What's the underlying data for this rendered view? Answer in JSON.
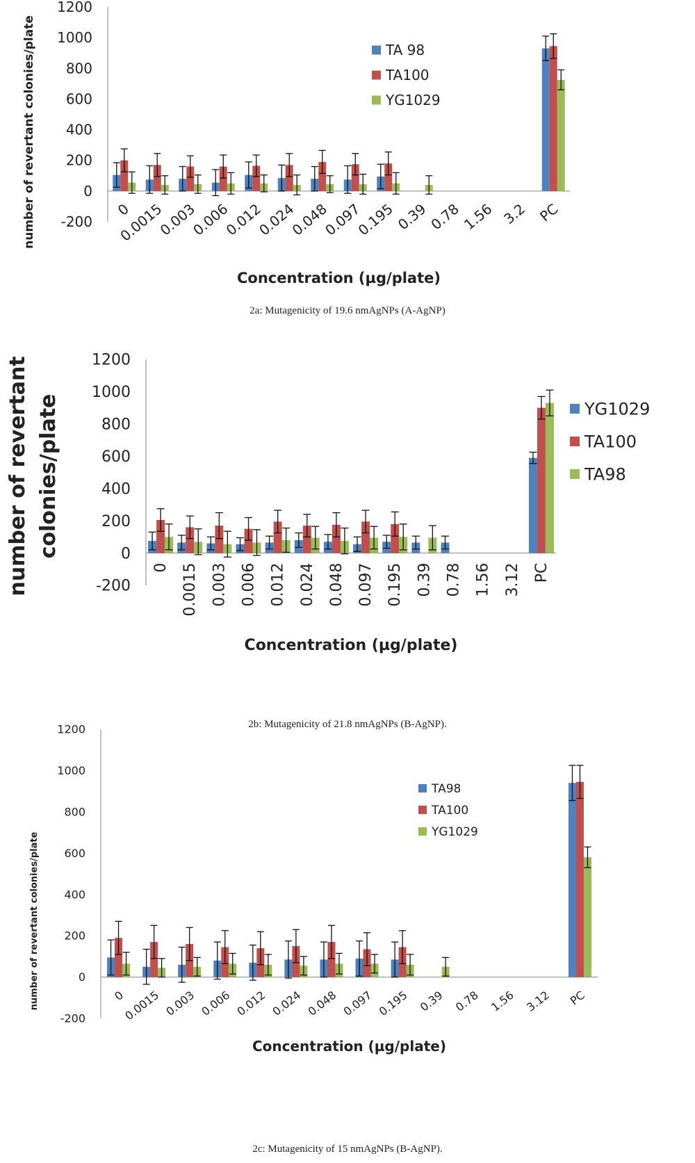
{
  "colors": {
    "blue": "#4F81BD",
    "red": "#C0504D",
    "green": "#9BBB59"
  },
  "chart_data": [
    {
      "type": "bar",
      "ylabel": "number of revertant colonies/plate",
      "xlabel": "Concentration (µg/plate)",
      "caption": "2a: Mutagenicity of 19.6 nmAgNPs (A-AgNP)",
      "categories": [
        "0",
        "0.0015",
        "0.003",
        "0.006",
        "0.012",
        "0.024",
        "0.048",
        "0.097",
        "0.195",
        "0.39",
        "0.78",
        "1.56",
        "3.2",
        "PC"
      ],
      "ylim": [
        -200,
        1200
      ],
      "yticks": [
        "-200",
        "0",
        "200",
        "400",
        "600",
        "800",
        "1000",
        "1200"
      ],
      "grid": false,
      "legend_position": "top-right",
      "series": [
        {
          "name": "TA 98",
          "color": "#4F81BD",
          "values": [
            105,
            75,
            80,
            55,
            105,
            85,
            80,
            75,
            95,
            null,
            null,
            null,
            null,
            930
          ],
          "errors": [
            80,
            90,
            80,
            85,
            85,
            85,
            80,
            90,
            80,
            null,
            null,
            null,
            null,
            80
          ]
        },
        {
          "name": "TA100",
          "color": "#C0504D",
          "values": [
            200,
            170,
            160,
            160,
            165,
            170,
            190,
            175,
            180,
            null,
            null,
            null,
            null,
            945
          ],
          "errors": [
            75,
            75,
            70,
            75,
            70,
            75,
            75,
            70,
            75,
            null,
            null,
            null,
            null,
            80
          ]
        },
        {
          "name": "YG1029",
          "color": "#9BBB59",
          "values": [
            55,
            40,
            45,
            50,
            50,
            40,
            45,
            45,
            50,
            40,
            null,
            null,
            null,
            725
          ],
          "errors": [
            70,
            60,
            60,
            70,
            55,
            65,
            55,
            65,
            70,
            60,
            null,
            null,
            null,
            65
          ]
        }
      ]
    },
    {
      "type": "bar",
      "ylabel_lines": [
        "number of revertant",
        "colonies/plate"
      ],
      "xlabel": "Concentration (µg/plate)",
      "caption": "2b: Mutagenicity of 21.8 nmAgNPs (B-AgNP).",
      "categories": [
        "0",
        "0.0015",
        "0.003",
        "0.006",
        "0.012",
        "0.024",
        "0.048",
        "0.097",
        "0.195",
        "0.39",
        "0.78",
        "1.56",
        "3.12",
        "PC"
      ],
      "ylim": [
        -200,
        1200
      ],
      "yticks": [
        "-200",
        "0",
        "200",
        "400",
        "600",
        "800",
        "1000",
        "1200"
      ],
      "grid": false,
      "legend_position": "right",
      "series": [
        {
          "name": "YG1029",
          "color": "#4F81BD",
          "values": [
            75,
            65,
            60,
            55,
            65,
            80,
            70,
            55,
            70,
            65,
            65,
            null,
            null,
            590
          ],
          "errors": [
            55,
            45,
            40,
            40,
            40,
            45,
            45,
            45,
            40,
            40,
            40,
            null,
            null,
            35
          ]
        },
        {
          "name": "TA100",
          "color": "#C0504D",
          "values": [
            205,
            160,
            170,
            150,
            195,
            170,
            175,
            195,
            180,
            null,
            null,
            null,
            null,
            900
          ],
          "errors": [
            70,
            70,
            80,
            70,
            70,
            70,
            75,
            70,
            75,
            null,
            null,
            null,
            null,
            70
          ]
        },
        {
          "name": "TA98",
          "color": "#9BBB59",
          "values": [
            100,
            70,
            55,
            65,
            80,
            95,
            75,
            95,
            100,
            95,
            null,
            null,
            null,
            930
          ],
          "errors": [
            80,
            80,
            80,
            80,
            75,
            70,
            80,
            70,
            80,
            75,
            null,
            null,
            null,
            80
          ]
        }
      ]
    },
    {
      "type": "bar",
      "ylabel": "number of revertant colonies/plate",
      "xlabel": "Concentration (µg/plate)",
      "caption": "2c: Mutagenicity of 15 nmAgNPs (B-AgNP).",
      "categories": [
        "0",
        "0.0015",
        "0.003",
        "0.006",
        "0.012",
        "0.024",
        "0.048",
        "0.097",
        "0.195",
        "0.39",
        "0.78",
        "1.56",
        "3.12",
        "PC"
      ],
      "ylim": [
        -200,
        1200
      ],
      "yticks": [
        "-200",
        "0",
        "200",
        "400",
        "600",
        "800",
        "1000",
        "1200"
      ],
      "grid": false,
      "legend_position": "top-right",
      "series": [
        {
          "name": "TA98",
          "color": "#4F81BD",
          "values": [
            95,
            50,
            60,
            80,
            70,
            85,
            85,
            90,
            85,
            null,
            null,
            null,
            null,
            940
          ],
          "errors": [
            85,
            85,
            85,
            90,
            85,
            90,
            85,
            85,
            85,
            null,
            null,
            null,
            null,
            85
          ]
        },
        {
          "name": "TA100",
          "color": "#C0504D",
          "values": [
            190,
            170,
            160,
            145,
            140,
            150,
            170,
            135,
            145,
            null,
            null,
            null,
            null,
            945
          ],
          "errors": [
            80,
            80,
            80,
            80,
            80,
            80,
            80,
            80,
            80,
            null,
            null,
            null,
            null,
            80
          ]
        },
        {
          "name": "YG1029",
          "color": "#9BBB59",
          "values": [
            65,
            45,
            50,
            65,
            60,
            55,
            65,
            65,
            60,
            50,
            null,
            null,
            null,
            580
          ],
          "errors": [
            55,
            45,
            45,
            50,
            50,
            45,
            50,
            45,
            50,
            45,
            null,
            null,
            null,
            50
          ]
        }
      ]
    }
  ]
}
